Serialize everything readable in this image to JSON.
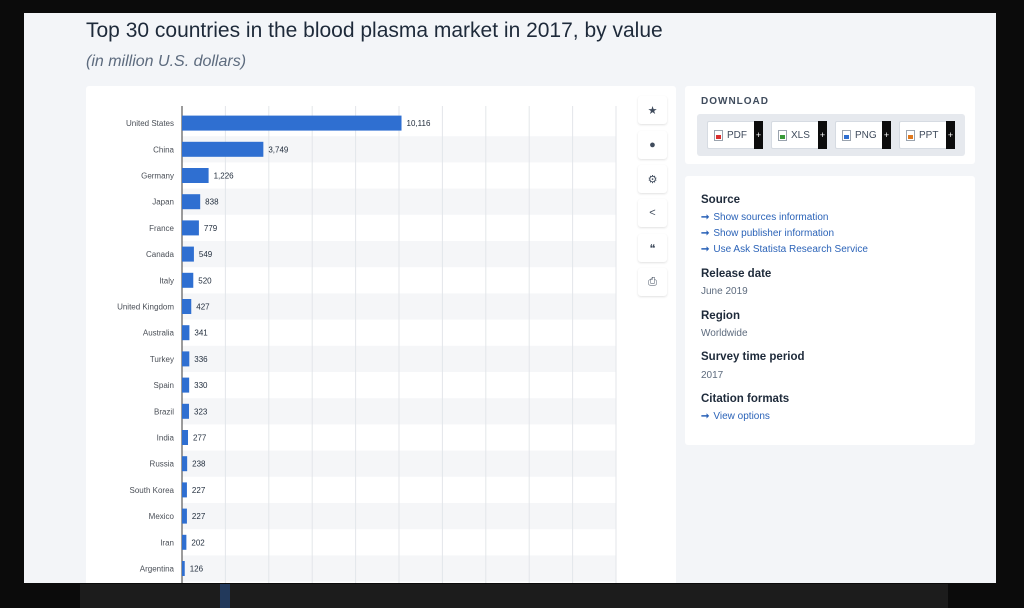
{
  "header": {
    "title": "Top 30 countries in the blood plasma market in 2017, by value",
    "subtitle": "(in million U.S. dollars)"
  },
  "colors": {
    "bar": "#2f6fd1",
    "page_bg": "#f3f5f8",
    "link": "#2b63b8"
  },
  "toolbar": {
    "icons": [
      "star-icon",
      "bell-icon",
      "gear-icon",
      "share-icon",
      "quote-icon",
      "print-icon"
    ],
    "glyphs": [
      "★",
      "●",
      "⚙",
      "<",
      "❝",
      "⎙"
    ]
  },
  "download": {
    "title": "DOWNLOAD",
    "buttons": [
      "PDF",
      "XLS",
      "PNG",
      "PPT"
    ],
    "plus": "+"
  },
  "info": {
    "source_heading": "Source",
    "source_links": [
      "Show sources information",
      "Show publisher information",
      "Use Ask Statista Research Service"
    ],
    "release_heading": "Release date",
    "release_value": "June 2019",
    "region_heading": "Region",
    "region_value": "Worldwide",
    "survey_heading": "Survey time period",
    "survey_value": "2017",
    "citation_heading": "Citation formats",
    "citation_link": "View options",
    "arrow": "➞"
  },
  "chart_data": {
    "type": "bar",
    "orientation": "horizontal",
    "categories": [
      "United States",
      "China",
      "Germany",
      "Japan",
      "France",
      "Canada",
      "Italy",
      "United Kingdom",
      "Australia",
      "Turkey",
      "Spain",
      "Brazil",
      "India",
      "Russia",
      "South Korea",
      "Mexico",
      "Iran",
      "Argentina"
    ],
    "values": [
      10116,
      3749,
      1226,
      838,
      779,
      549,
      520,
      427,
      341,
      336,
      330,
      323,
      277,
      238,
      227,
      227,
      202,
      126
    ],
    "labels": [
      "10,116",
      "3,749",
      "1,226",
      "838",
      "779",
      "549",
      "520",
      "427",
      "341",
      "336",
      "330",
      "323",
      "277",
      "238",
      "227",
      "227",
      "202",
      "126"
    ],
    "xlim": [
      0,
      20000
    ],
    "grid": true
  }
}
